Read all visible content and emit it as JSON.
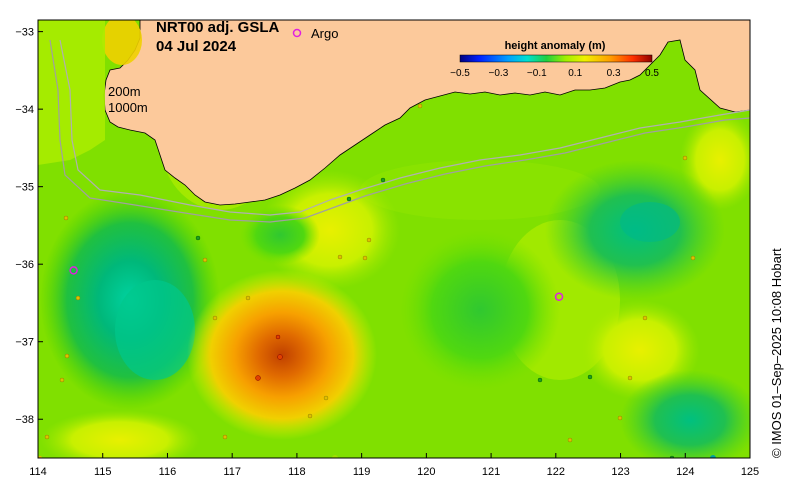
{
  "title": {
    "line1": "NRT00 adj. GSLA",
    "line2": "04 Jul 2024"
  },
  "argo_legend": {
    "symbol": "o",
    "label": "Argo",
    "color": "#e020e0"
  },
  "isobaths": {
    "label_200": "200m",
    "label_1000": "1000m"
  },
  "colorbar": {
    "title": "height anomaly (m)",
    "ticks": [
      "−0.5",
      "−0.3",
      "−0.1",
      "0.1",
      "0.3",
      "0.5"
    ],
    "colors": [
      "#00007f",
      "#0000ff",
      "#0080ff",
      "#00ffff",
      "#00c0a0",
      "#00c060",
      "#20e000",
      "#80f000",
      "#c0ff00",
      "#ffff00",
      "#ffc000",
      "#ff8000",
      "#ff4000",
      "#e00000",
      "#800000"
    ]
  },
  "axes": {
    "x_ticks": [
      "114",
      "115",
      "116",
      "117",
      "118",
      "119",
      "120",
      "121",
      "122",
      "123",
      "124",
      "125"
    ],
    "y_ticks": [
      "−33",
      "−34",
      "−35",
      "−36",
      "−37",
      "−38"
    ]
  },
  "credit": "© IMOS 01–Sep–2025 10:08 Hobart",
  "colors": {
    "land": "#fcc99b",
    "ocean_base": "#80e000",
    "argo": "#e020e0"
  },
  "argo_floats": [
    {
      "lon": 114.55,
      "lat": -36.08
    },
    {
      "lon": 122.05,
      "lat": -36.42
    }
  ]
}
